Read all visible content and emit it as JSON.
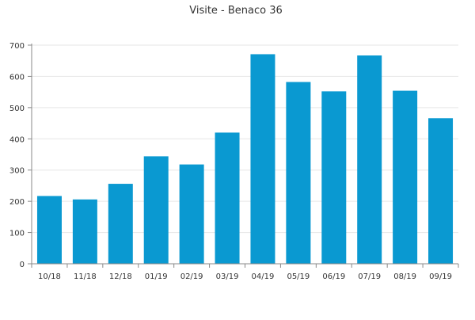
{
  "chart_data": {
    "type": "bar",
    "title": "Visite - Benaco 36",
    "xlabel": "",
    "ylabel": "",
    "categories": [
      "10/18",
      "11/18",
      "12/18",
      "01/19",
      "02/19",
      "03/19",
      "04/19",
      "05/19",
      "06/19",
      "07/19",
      "08/19",
      "09/19"
    ],
    "values": [
      217,
      206,
      256,
      344,
      318,
      420,
      671,
      582,
      552,
      667,
      554,
      466
    ],
    "ylim": [
      0,
      700
    ],
    "yticks": [
      0,
      100,
      200,
      300,
      400,
      500,
      600,
      700
    ],
    "grid": true,
    "legend": "none",
    "bar_color": "#0a99d1",
    "grid_color": "#e6e6e6",
    "axis_color": "#888888"
  }
}
